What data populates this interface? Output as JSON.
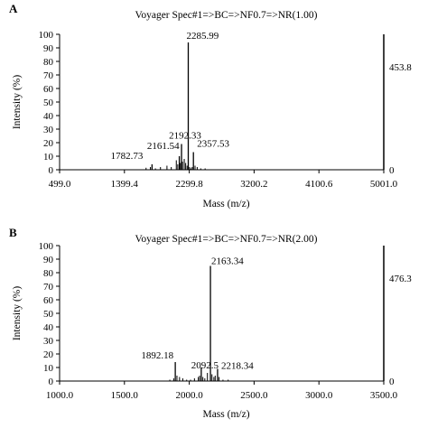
{
  "chart_data": [
    {
      "type": "line",
      "panel_label": "A",
      "title": "Voyager Spec#1=>BC=>NF0.7=>NR(1.00)",
      "xlabel": "Mass (m/z)",
      "ylabel": "Intensity (%)",
      "xlim": [
        499.0,
        5001.0
      ],
      "ylim": [
        0,
        100
      ],
      "x_ticks": [
        "499.0",
        "1399.4",
        "2299.8",
        "3200.2",
        "4100.6",
        "5001.0"
      ],
      "y_ticks": [
        "0",
        "10",
        "20",
        "30",
        "40",
        "50",
        "60",
        "70",
        "80",
        "90",
        "100"
      ],
      "right_axis_top": "453.8",
      "right_axis_bottom": "0",
      "grid": false,
      "peaks": [
        {
          "x": 1782.73,
          "y": 4,
          "label": "1782.73"
        },
        {
          "x": 2161.54,
          "y": 10,
          "label": "2161.54"
        },
        {
          "x": 2192.33,
          "y": 19,
          "label": "2192.33"
        },
        {
          "x": 2285.99,
          "y": 94,
          "label": "2285.99"
        },
        {
          "x": 2357.53,
          "y": 13,
          "label": "2357.53"
        }
      ],
      "minor_peaks": [
        {
          "x": 1700,
          "y": 1.5
        },
        {
          "x": 1760,
          "y": 2
        },
        {
          "x": 1830,
          "y": 1
        },
        {
          "x": 1900,
          "y": 2
        },
        {
          "x": 1990,
          "y": 3
        },
        {
          "x": 2050,
          "y": 2
        },
        {
          "x": 2120,
          "y": 7
        },
        {
          "x": 2140,
          "y": 4
        },
        {
          "x": 2175,
          "y": 5
        },
        {
          "x": 2205,
          "y": 6
        },
        {
          "x": 2230,
          "y": 8
        },
        {
          "x": 2250,
          "y": 5
        },
        {
          "x": 2270,
          "y": 3
        },
        {
          "x": 2305,
          "y": 2
        },
        {
          "x": 2320,
          "y": 1
        },
        {
          "x": 2340,
          "y": 2
        },
        {
          "x": 2380,
          "y": 3
        },
        {
          "x": 2410,
          "y": 2
        },
        {
          "x": 2460,
          "y": 1
        },
        {
          "x": 2520,
          "y": 1
        }
      ]
    },
    {
      "type": "line",
      "panel_label": "B",
      "title": "Voyager Spec#1=>BC=>NF0.7=>NR(2.00)",
      "xlabel": "Mass (m/z)",
      "ylabel": "Intensity (%)",
      "xlim": [
        1000.0,
        3500.0
      ],
      "ylim": [
        0,
        100
      ],
      "x_ticks": [
        "1000.0",
        "1500.0",
        "2000.0",
        "2500.0",
        "3000.0",
        "3500.0"
      ],
      "y_ticks": [
        "0",
        "10",
        "20",
        "30",
        "40",
        "50",
        "60",
        "70",
        "80",
        "90",
        "100"
      ],
      "right_axis_top": "476.3",
      "right_axis_bottom": "0",
      "grid": false,
      "peaks": [
        {
          "x": 1892.18,
          "y": 14,
          "label": "1892.18"
        },
        {
          "x": 2092.5,
          "y": 10,
          "label": "2092.5"
        },
        {
          "x": 2163.34,
          "y": 85,
          "label": "2163.34"
        },
        {
          "x": 2218.34,
          "y": 9,
          "label": "2218.34"
        }
      ],
      "minor_peaks": [
        {
          "x": 1850,
          "y": 1
        },
        {
          "x": 1880,
          "y": 2
        },
        {
          "x": 1905,
          "y": 4
        },
        {
          "x": 1925,
          "y": 3
        },
        {
          "x": 1950,
          "y": 2
        },
        {
          "x": 1980,
          "y": 1
        },
        {
          "x": 2010,
          "y": 1
        },
        {
          "x": 2040,
          "y": 2
        },
        {
          "x": 2070,
          "y": 3
        },
        {
          "x": 2080,
          "y": 4
        },
        {
          "x": 2105,
          "y": 3
        },
        {
          "x": 2120,
          "y": 2
        },
        {
          "x": 2140,
          "y": 6
        },
        {
          "x": 2175,
          "y": 5
        },
        {
          "x": 2190,
          "y": 3
        },
        {
          "x": 2200,
          "y": 4
        },
        {
          "x": 2230,
          "y": 3
        },
        {
          "x": 2260,
          "y": 1
        },
        {
          "x": 2300,
          "y": 1
        }
      ]
    }
  ]
}
